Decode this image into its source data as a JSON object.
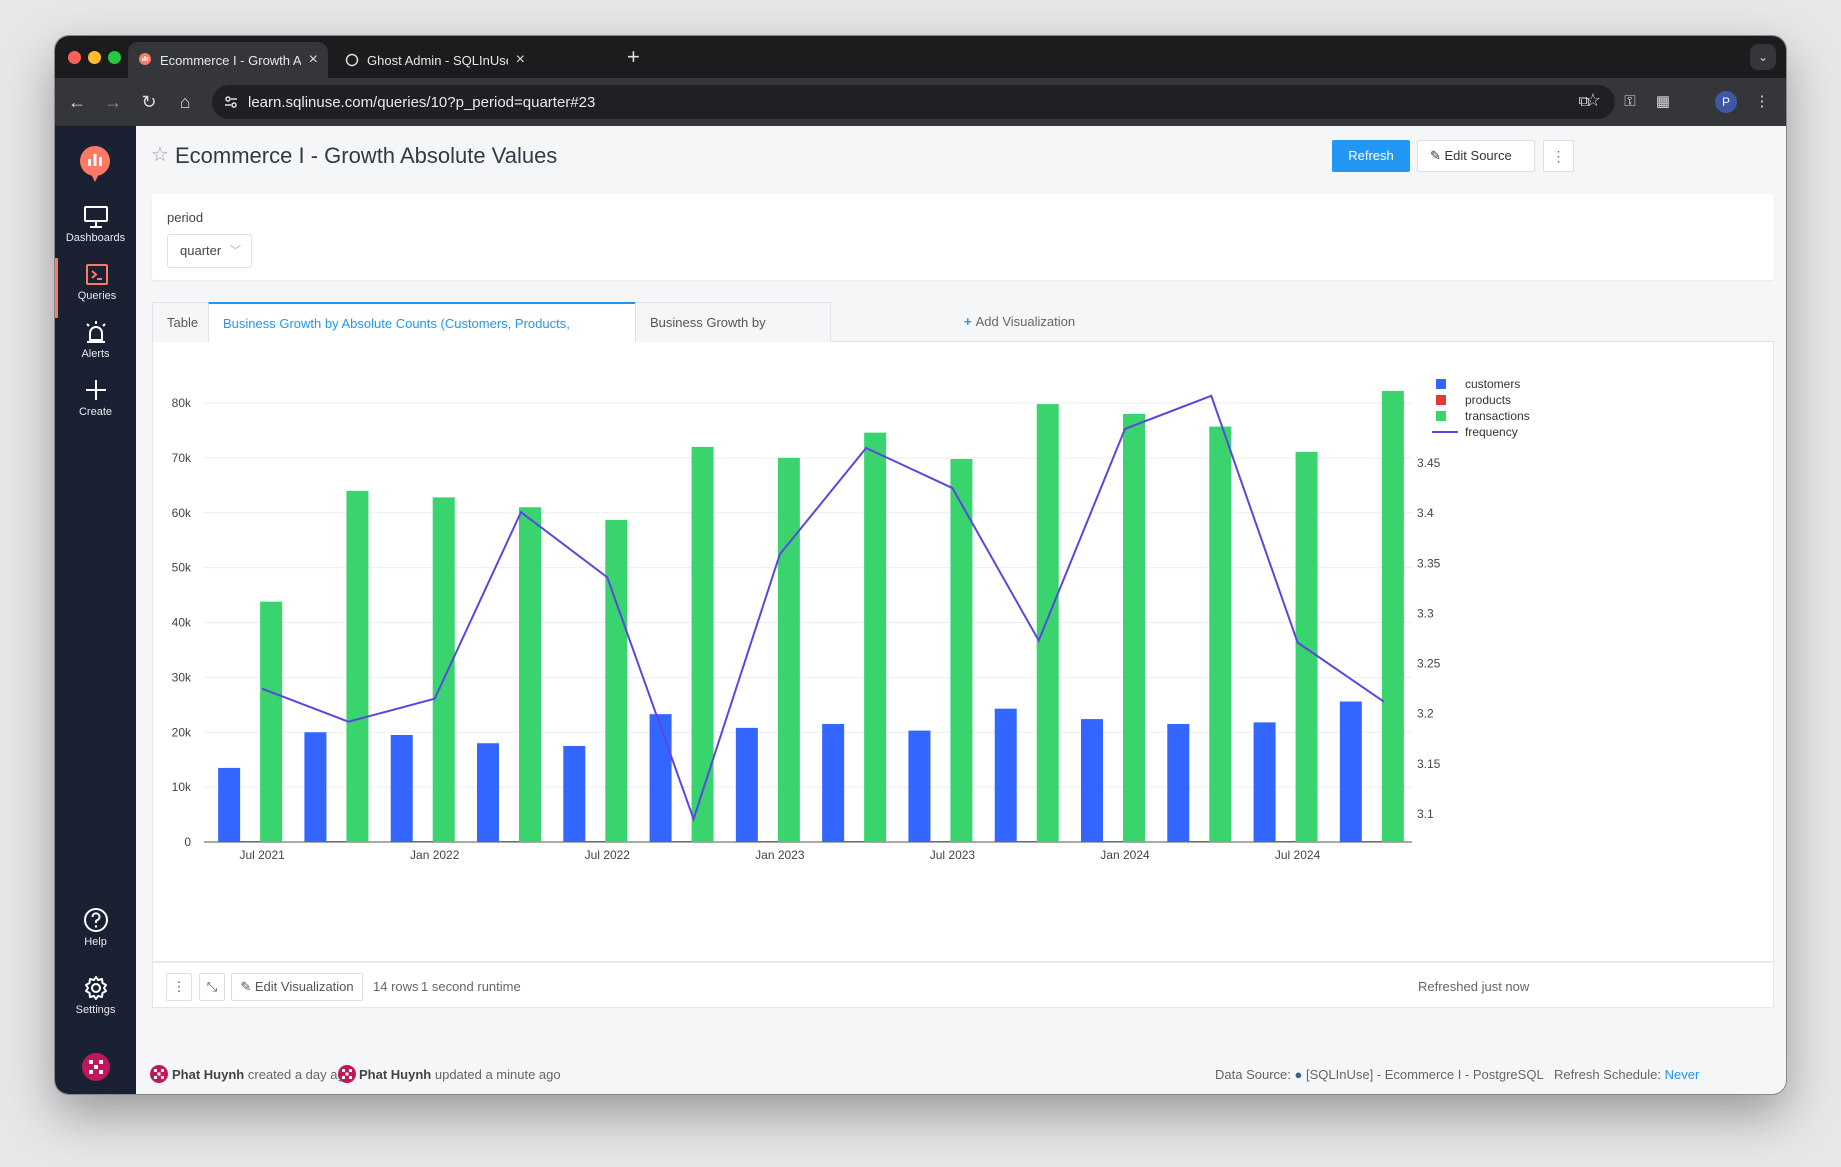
{
  "browser": {
    "tabs": [
      {
        "title": "Ecommerce I - Growth Absolu",
        "active": true
      },
      {
        "title": "Ghost Admin - SQLInUse",
        "active": false
      }
    ],
    "url": "learn.sqlinuse.com/queries/10?p_period=quarter#23",
    "profile_initial": "P"
  },
  "sidebar": {
    "items": [
      {
        "label": "Dashboards",
        "icon": "monitor-icon"
      },
      {
        "label": "Queries",
        "icon": "terminal-icon"
      },
      {
        "label": "Alerts",
        "icon": "alarm-icon"
      },
      {
        "label": "Create",
        "icon": "plus-icon"
      }
    ],
    "bottom": [
      {
        "label": "Help",
        "icon": "help-circle-icon"
      },
      {
        "label": "Settings",
        "icon": "gear-icon"
      }
    ]
  },
  "header": {
    "title": "Ecommerce I - Growth Absolute Values",
    "refresh_label": "Refresh",
    "edit_source_label": "Edit Source"
  },
  "parameters": {
    "label": "period",
    "value": "quarter"
  },
  "viz_tabs": [
    {
      "label": "Table"
    },
    {
      "label": "Business Growth by Absolute Counts (Customers, Products, Transactions)"
    },
    {
      "label": "Business Growth by Renenue"
    }
  ],
  "add_visualization_label": "Add Visualization",
  "chart_data": {
    "type": "bar",
    "x_tick_labels": [
      "Jul 2021",
      "Jan 2022",
      "Jul 2022",
      "Jan 2023",
      "Jul 2023",
      "Jan 2024",
      "Jul 2024"
    ],
    "categories": [
      "2021-Q3",
      "2021-Q4",
      "2022-Q1",
      "2022-Q2",
      "2022-Q3",
      "2022-Q4",
      "2023-Q1",
      "2023-Q2",
      "2023-Q3",
      "2023-Q4",
      "2024-Q1",
      "2024-Q2",
      "2024-Q3",
      "2024-Q4"
    ],
    "series": [
      {
        "name": "customers",
        "type": "bar",
        "axis": "left",
        "color": "#3366ff",
        "values": [
          13500,
          20000,
          19500,
          18000,
          17500,
          23300,
          20800,
          21500,
          20300,
          24300,
          22400,
          21500,
          21800,
          25600
        ]
      },
      {
        "name": "products",
        "type": "bar",
        "axis": "left",
        "color": "#e53935",
        "values": [
          50,
          50,
          50,
          50,
          50,
          50,
          50,
          50,
          50,
          50,
          50,
          50,
          50,
          50
        ]
      },
      {
        "name": "transactions",
        "type": "bar",
        "axis": "left",
        "color": "#3ad46e",
        "values": [
          43800,
          64000,
          62800,
          61000,
          58700,
          72000,
          70000,
          74600,
          69800,
          79800,
          78000,
          75700,
          71100,
          82200
        ]
      },
      {
        "name": "frequency",
        "type": "line",
        "axis": "right",
        "color": "#5a46e0",
        "values": [
          3.225,
          3.192,
          3.215,
          3.401,
          3.336,
          3.095,
          3.359,
          3.465,
          3.425,
          3.273,
          3.484,
          3.517,
          3.271,
          3.212
        ]
      }
    ],
    "y_left": {
      "ticks": [
        0,
        10000,
        20000,
        30000,
        40000,
        50000,
        60000,
        70000,
        80000
      ],
      "tick_labels": [
        "0",
        "10k",
        "20k",
        "30k",
        "40k",
        "50k",
        "60k",
        "70k",
        "80k"
      ],
      "range": [
        0,
        80000
      ]
    },
    "y_right": {
      "ticks": [
        3.1,
        3.15,
        3.2,
        3.25,
        3.3,
        3.35,
        3.4,
        3.45
      ],
      "tick_labels": [
        "3.1",
        "3.15",
        "3.2",
        "3.25",
        "3.3",
        "3.35",
        "3.4",
        "3.45"
      ]
    },
    "grid": true,
    "legend_position": "top-right"
  },
  "viz_footer": {
    "edit_visualization_label": "Edit Visualization",
    "rows_text": "14 rows",
    "runtime_text": "1 second runtime",
    "refreshed_text": "Refreshed just now"
  },
  "page_footer": {
    "created_by": "Phat Huynh",
    "created_text": "created a day ago",
    "updated_by": "Phat Huynh",
    "updated_text": "updated a minute ago",
    "data_source_label": "Data Source:",
    "data_source_value": "[SQLInUse] - Ecommerce I - PostgreSQL",
    "schedule_label": "Refresh Schedule:",
    "schedule_value": "Never"
  },
  "colors": {
    "accent": "#2196f3",
    "sidebar_bg": "#1a2133",
    "brand": "#ff7964"
  }
}
